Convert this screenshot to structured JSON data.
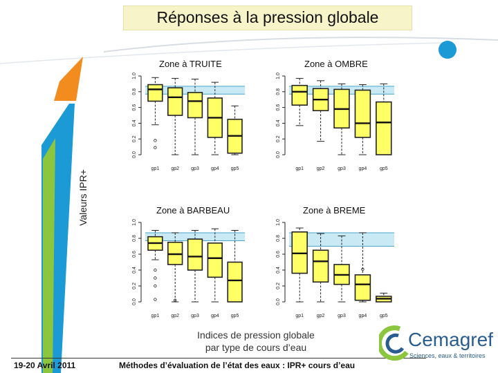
{
  "slide": {
    "title": "Réponses à la pression globale",
    "y_axis_label": "Valeurs IPR+",
    "caption_line1": "Indices de pression globale",
    "caption_line2": "par type de cours d’eau",
    "footer_date": "19-20 Avril 2011",
    "footer_text": "Méthodes d’évaluation de l’état des eaux : IPR+ cours d’eau",
    "logo_name": "Cemagref",
    "logo_subtitle": "Sciences, eaux & territoires"
  },
  "colors": {
    "box_fill": "#ffff66",
    "band": "#c9e9f5",
    "band_line": "#4aa6c8",
    "accent_orange": "#f28c1e",
    "accent_blue": "#1b9ad6",
    "accent_green": "#8cc63f"
  },
  "chart_data": [
    {
      "type": "boxplot",
      "title": "Zone à TRUITE",
      "categories": [
        "gp1",
        "gp2",
        "gp3",
        "gp4",
        "gp5"
      ],
      "yticks": [
        "0.0",
        "0.2",
        "0.4",
        "0.6",
        "0.8",
        "1.0"
      ],
      "ylim": [
        0,
        1
      ],
      "reference_band": [
        0.77,
        0.87
      ],
      "boxes": [
        {
          "whisker_low": 0.38,
          "q1": 0.68,
          "median": 0.83,
          "q3": 0.89,
          "whisker_high": 0.98,
          "outliers": [
            0.18,
            0.09
          ]
        },
        {
          "whisker_low": 0.0,
          "q1": 0.5,
          "median": 0.73,
          "q3": 0.85,
          "whisker_high": 0.97,
          "outliers": []
        },
        {
          "whisker_low": 0.0,
          "q1": 0.47,
          "median": 0.68,
          "q3": 0.79,
          "whisker_high": 0.96,
          "outliers": []
        },
        {
          "whisker_low": 0.0,
          "q1": 0.22,
          "median": 0.47,
          "q3": 0.72,
          "whisker_high": 0.92,
          "outliers": []
        },
        {
          "whisker_low": 0.0,
          "q1": 0.02,
          "median": 0.24,
          "q3": 0.45,
          "whisker_high": 0.62,
          "outliers": []
        }
      ]
    },
    {
      "type": "boxplot",
      "title": "Zone à OMBRE",
      "categories": [
        "gp1",
        "gp2",
        "gp3",
        "gp4",
        "gp5"
      ],
      "yticks": [
        "0.0",
        "0.2",
        "0.4",
        "0.6",
        "0.8",
        "1.0"
      ],
      "ylim": [
        0,
        1
      ],
      "reference_band": [
        0.77,
        0.87
      ],
      "boxes": [
        {
          "whisker_low": 0.37,
          "q1": 0.63,
          "median": 0.8,
          "q3": 0.88,
          "whisker_high": 0.97,
          "outliers": []
        },
        {
          "whisker_low": 0.17,
          "q1": 0.56,
          "median": 0.7,
          "q3": 0.84,
          "whisker_high": 0.94,
          "outliers": []
        },
        {
          "whisker_low": 0.0,
          "q1": 0.34,
          "median": 0.58,
          "q3": 0.83,
          "whisker_high": 0.9,
          "outliers": []
        },
        {
          "whisker_low": 0.0,
          "q1": 0.22,
          "median": 0.4,
          "q3": 0.82,
          "whisker_high": 0.89,
          "outliers": []
        },
        {
          "whisker_low": 0.0,
          "q1": 0.0,
          "median": 0.41,
          "q3": 0.67,
          "whisker_high": 0.9,
          "outliers": []
        }
      ]
    },
    {
      "type": "boxplot",
      "title": "Zone à BARBEAU",
      "categories": [
        "gp1",
        "gp2",
        "gp3",
        "gp4",
        "gp5"
      ],
      "yticks": [
        "0.0",
        "0.2",
        "0.4",
        "0.6",
        "0.8",
        "1.0"
      ],
      "ylim": [
        0,
        1
      ],
      "reference_band": [
        0.77,
        0.87
      ],
      "boxes": [
        {
          "whisker_low": 0.53,
          "q1": 0.65,
          "median": 0.74,
          "q3": 0.82,
          "whisker_high": 0.9,
          "outliers": [
            0.4,
            0.3,
            0.2,
            0.03
          ]
        },
        {
          "whisker_low": 0.0,
          "q1": 0.47,
          "median": 0.6,
          "q3": 0.75,
          "whisker_high": 0.87,
          "outliers": [
            0.02
          ]
        },
        {
          "whisker_low": 0.0,
          "q1": 0.4,
          "median": 0.57,
          "q3": 0.79,
          "whisker_high": 0.9,
          "outliers": []
        },
        {
          "whisker_low": 0.0,
          "q1": 0.31,
          "median": 0.55,
          "q3": 0.74,
          "whisker_high": 0.92,
          "outliers": []
        },
        {
          "whisker_low": 0.0,
          "q1": 0.0,
          "median": 0.27,
          "q3": 0.5,
          "whisker_high": 0.9,
          "outliers": []
        }
      ]
    },
    {
      "type": "boxplot",
      "title": "Zone à BREME",
      "categories": [
        "gp1",
        "gp2",
        "gp3",
        "gp4",
        "gp5"
      ],
      "yticks": [
        "0.0",
        "0.2",
        "0.4",
        "0.6",
        "0.8",
        "1.0"
      ],
      "ylim": [
        0,
        1
      ],
      "reference_band": [
        0.7,
        0.87
      ],
      "boxes": [
        {
          "whisker_low": 0.0,
          "q1": 0.36,
          "median": 0.61,
          "q3": 0.88,
          "whisker_high": 0.93,
          "outliers": []
        },
        {
          "whisker_low": 0.0,
          "q1": 0.25,
          "median": 0.51,
          "q3": 0.65,
          "whisker_high": 0.86,
          "outliers": []
        },
        {
          "whisker_low": 0.0,
          "q1": 0.22,
          "median": 0.34,
          "q3": 0.47,
          "whisker_high": 0.83,
          "outliers": []
        },
        {
          "whisker_low": 0.0,
          "q1": 0.02,
          "median": 0.22,
          "q3": 0.34,
          "whisker_high": 0.87,
          "outliers": [
            0.41
          ]
        },
        {
          "whisker_low": 0.0,
          "q1": 0.0,
          "median": 0.04,
          "q3": 0.07,
          "whisker_high": 0.11,
          "outliers": []
        }
      ]
    }
  ]
}
